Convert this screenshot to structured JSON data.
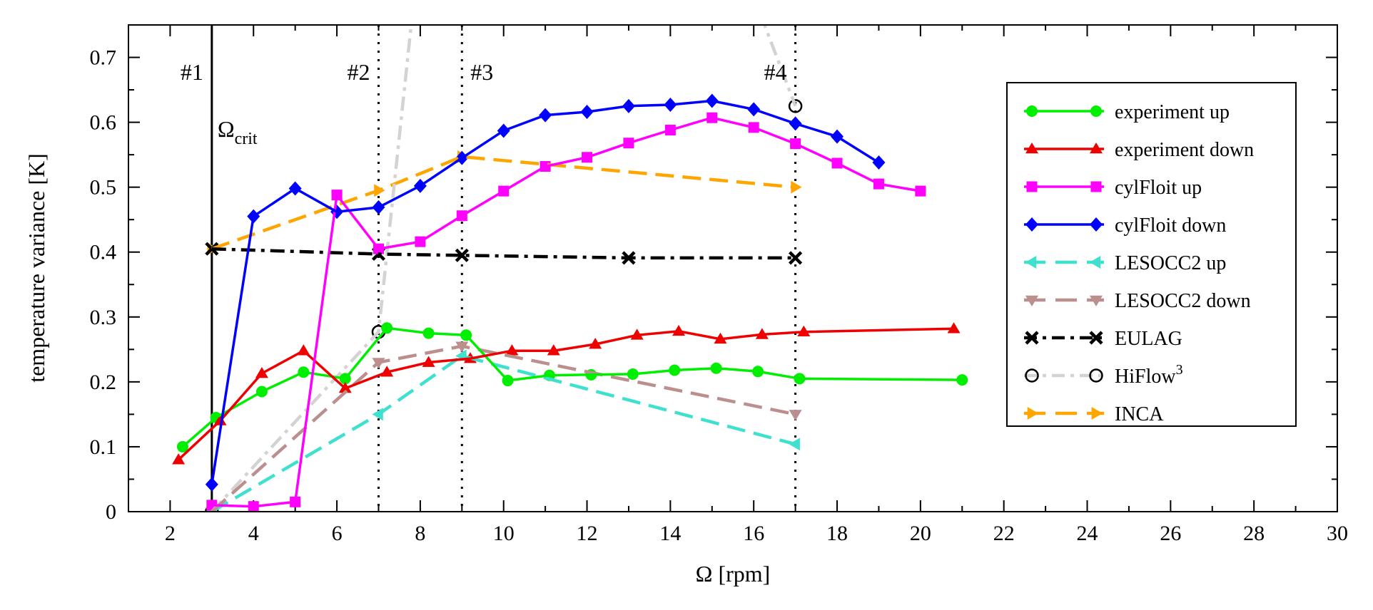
{
  "chart_data": {
    "type": "line",
    "title": "",
    "xlabel": "Ω [rpm]",
    "ylabel": "temperature variance [K]",
    "xlim": [
      1,
      30
    ],
    "ylim": [
      0,
      0.75
    ],
    "xticks": [
      2,
      4,
      6,
      8,
      10,
      12,
      14,
      16,
      18,
      20,
      22,
      24,
      26,
      28,
      30
    ],
    "xtick_labels": [
      "2",
      "4",
      "6",
      "8",
      "10",
      "12",
      "14",
      "16",
      "18",
      "20",
      "22",
      "24",
      "26",
      "28",
      "30"
    ],
    "yticks": [
      0,
      0.1,
      0.2,
      0.3,
      0.4,
      0.5,
      0.6,
      0.7
    ],
    "ytick_labels": [
      "0",
      "0.1",
      "0.2",
      "0.3",
      "0.4",
      "0.5",
      "0.6",
      "0.7"
    ],
    "legend_position": "right",
    "vertical_lines": [
      {
        "x": 3,
        "style": "solid",
        "label": "#1"
      },
      {
        "x": 7,
        "style": "dotted",
        "label": "#2"
      },
      {
        "x": 9,
        "style": "dotted",
        "label": "#3"
      },
      {
        "x": 17,
        "style": "dotted",
        "label": "#4"
      }
    ],
    "annotation_omega": {
      "base": "Ω",
      "subscript": "crit"
    },
    "series": [
      {
        "name": "experiment up",
        "color": "#00ee00",
        "marker": "circle",
        "dash": "solid",
        "x": [
          2.3,
          3.1,
          4.2,
          5.2,
          6.2,
          7.2,
          8.2,
          9.1,
          10.1,
          11.1,
          12.1,
          13.1,
          14.1,
          15.1,
          16.1,
          17.1,
          21.0
        ],
        "y": [
          0.1,
          0.145,
          0.185,
          0.215,
          0.205,
          0.283,
          0.275,
          0.272,
          0.202,
          0.21,
          0.211,
          0.212,
          0.218,
          0.221,
          0.216,
          0.205,
          0.203
        ]
      },
      {
        "name": "experiment down",
        "color": "#ee0000",
        "marker": "triangle-up",
        "dash": "solid",
        "x": [
          2.2,
          3.2,
          4.2,
          5.2,
          6.2,
          7.2,
          8.2,
          9.2,
          10.2,
          11.2,
          12.2,
          13.2,
          14.2,
          15.2,
          16.2,
          17.2,
          20.8
        ],
        "y": [
          0.08,
          0.14,
          0.213,
          0.248,
          0.19,
          0.215,
          0.23,
          0.236,
          0.248,
          0.248,
          0.258,
          0.272,
          0.278,
          0.266,
          0.273,
          0.277,
          0.282
        ]
      },
      {
        "name": "cylFloit up",
        "color": "#ff00ff",
        "marker": "square",
        "dash": "solid",
        "x": [
          3,
          4,
          5,
          6,
          7,
          8,
          9,
          10,
          11,
          12,
          13,
          14,
          15,
          16,
          17,
          18,
          19,
          20
        ],
        "y": [
          0.01,
          0.008,
          0.015,
          0.488,
          0.405,
          0.416,
          0.456,
          0.494,
          0.532,
          0.546,
          0.568,
          0.588,
          0.607,
          0.592,
          0.567,
          0.537,
          0.505,
          0.494
        ]
      },
      {
        "name": "cylFloit down",
        "color": "#0000ff",
        "marker": "diamond",
        "dash": "solid",
        "x": [
          3,
          4,
          5,
          6,
          7,
          8,
          9,
          10,
          11,
          12,
          13,
          14,
          15,
          16,
          17,
          18,
          19
        ],
        "y": [
          0.042,
          0.455,
          0.498,
          0.462,
          0.469,
          0.502,
          0.545,
          0.587,
          0.611,
          0.616,
          0.625,
          0.627,
          0.633,
          0.62,
          0.598,
          0.578,
          0.538
        ]
      },
      {
        "name": "LESOCC2 up",
        "color": "#40e0d0",
        "marker": "triangle-left",
        "dash": "dashed",
        "x": [
          3,
          7,
          9,
          17
        ],
        "y": [
          0.0,
          0.15,
          0.24,
          0.104
        ]
      },
      {
        "name": "LESOCC2 down",
        "color": "#bc8f8f",
        "marker": "triangle-down",
        "dash": "dashed",
        "x": [
          3,
          7,
          9,
          17
        ],
        "y": [
          0.0,
          0.23,
          0.255,
          0.15
        ]
      },
      {
        "name": "EULAG",
        "color": "#000000",
        "marker": "x",
        "dash": "dashdot",
        "x": [
          3,
          7,
          9,
          13,
          17
        ],
        "y": [
          0.405,
          0.397,
          0.395,
          0.391,
          0.391
        ]
      },
      {
        "name": "HiFlow",
        "superscript": "3",
        "color": "#d3d3d3",
        "marker": "open-circle",
        "dash": "dashdot",
        "x": [
          3,
          7,
          7.8,
          16.2,
          17
        ],
        "y": [
          0.0,
          0.277,
          0.76,
          0.76,
          0.625
        ],
        "marker_indices": [
          0,
          1,
          4
        ]
      },
      {
        "name": "INCA",
        "color": "#ffa500",
        "marker": "triangle-right",
        "dash": "dashed",
        "x": [
          3,
          7,
          9,
          17
        ],
        "y": [
          0.405,
          0.495,
          0.547,
          0.5
        ]
      }
    ]
  }
}
